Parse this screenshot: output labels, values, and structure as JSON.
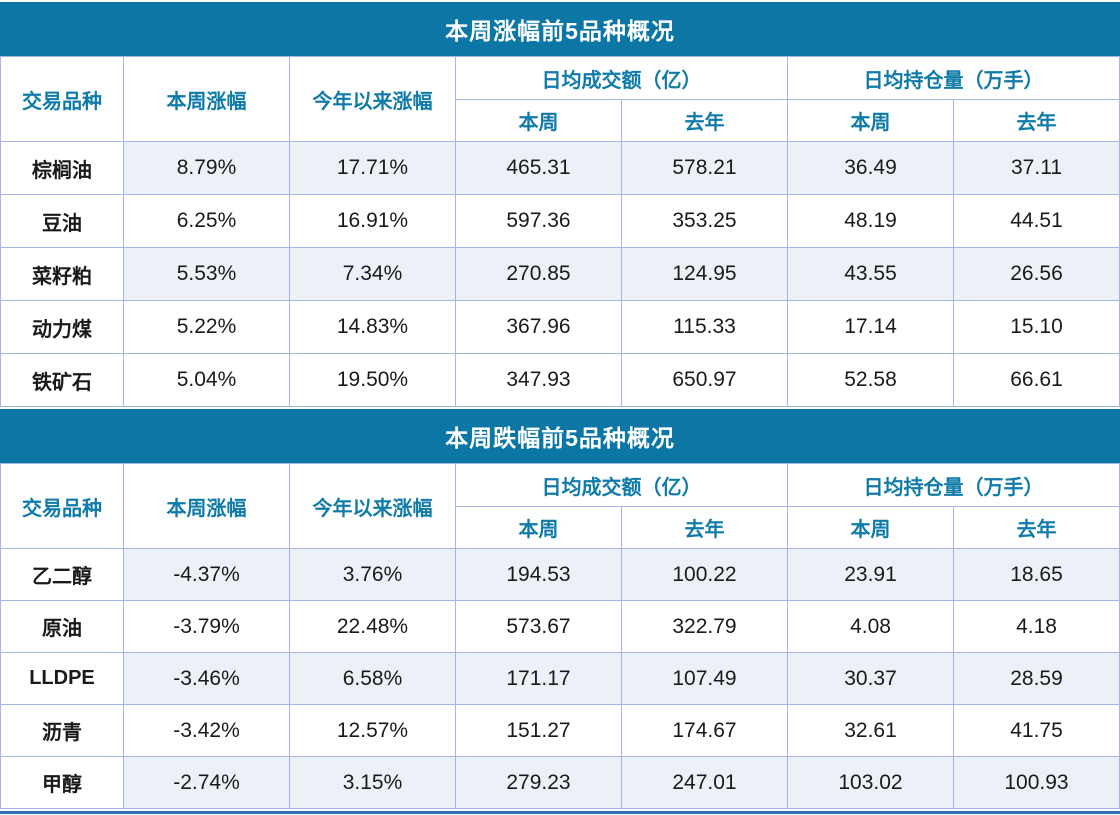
{
  "colors": {
    "title_bg": "#0c77a4",
    "title_text": "#ffffff",
    "header_text": "#0f7ba8",
    "grid_border": "#a5b7e1",
    "row_tint": "#ecf1f8",
    "body_text": "#1a1a1a",
    "bottom_rule": "#2e74b5"
  },
  "tables": [
    {
      "title": "本周涨幅前5品种概况",
      "headers": {
        "col_variety": "交易品种",
        "col_week_change": "本周涨幅",
        "col_ytd_change": "今年以来涨幅",
        "group_turnover": "日均成交额（亿）",
        "group_open_interest": "日均持仓量（万手）",
        "sub_this_week_turnover": "本周",
        "sub_last_year_turnover": "去年",
        "sub_this_week_oi": "本周",
        "sub_last_year_oi": "去年"
      },
      "rows": [
        {
          "variety": "棕榈油",
          "week_change": "8.79%",
          "ytd_change": "17.71%",
          "turnover_week": "465.31",
          "turnover_last_year": "578.21",
          "oi_week": "36.49",
          "oi_last_year": "37.11",
          "shaded": true
        },
        {
          "variety": "豆油",
          "week_change": "6.25%",
          "ytd_change": "16.91%",
          "turnover_week": "597.36",
          "turnover_last_year": "353.25",
          "oi_week": "48.19",
          "oi_last_year": "44.51",
          "shaded": false
        },
        {
          "variety": "菜籽粕",
          "week_change": "5.53%",
          "ytd_change": "7.34%",
          "turnover_week": "270.85",
          "turnover_last_year": "124.95",
          "oi_week": "43.55",
          "oi_last_year": "26.56",
          "shaded": true
        },
        {
          "variety": "动力煤",
          "week_change": "5.22%",
          "ytd_change": "14.83%",
          "turnover_week": "367.96",
          "turnover_last_year": "115.33",
          "oi_week": "17.14",
          "oi_last_year": "15.10",
          "shaded": false
        },
        {
          "variety": "铁矿石",
          "week_change": "5.04%",
          "ytd_change": "19.50%",
          "turnover_week": "347.93",
          "turnover_last_year": "650.97",
          "oi_week": "52.58",
          "oi_last_year": "66.61",
          "shaded": false
        }
      ]
    },
    {
      "title": "本周跌幅前5品种概况",
      "headers": {
        "col_variety": "交易品种",
        "col_week_change": "本周涨幅",
        "col_ytd_change": "今年以来涨幅",
        "group_turnover": "日均成交额（亿）",
        "group_open_interest": "日均持仓量（万手）",
        "sub_this_week_turnover": "本周",
        "sub_last_year_turnover": "去年",
        "sub_this_week_oi": "本周",
        "sub_last_year_oi": "去年"
      },
      "rows": [
        {
          "variety": "乙二醇",
          "week_change": "-4.37%",
          "ytd_change": "3.76%",
          "turnover_week": "194.53",
          "turnover_last_year": "100.22",
          "oi_week": "23.91",
          "oi_last_year": "18.65",
          "shaded": true
        },
        {
          "variety": "原油",
          "week_change": "-3.79%",
          "ytd_change": "22.48%",
          "turnover_week": "573.67",
          "turnover_last_year": "322.79",
          "oi_week": "4.08",
          "oi_last_year": "4.18",
          "shaded": false
        },
        {
          "variety": "LLDPE",
          "week_change": "-3.46%",
          "ytd_change": "6.58%",
          "turnover_week": "171.17",
          "turnover_last_year": "107.49",
          "oi_week": "30.37",
          "oi_last_year": "28.59",
          "shaded": true
        },
        {
          "variety": "沥青",
          "week_change": "-3.42%",
          "ytd_change": "12.57%",
          "turnover_week": "151.27",
          "turnover_last_year": "174.67",
          "oi_week": "32.61",
          "oi_last_year": "41.75",
          "shaded": false
        },
        {
          "variety": "甲醇",
          "week_change": "-2.74%",
          "ytd_change": "3.15%",
          "turnover_week": "279.23",
          "turnover_last_year": "247.01",
          "oi_week": "103.02",
          "oi_last_year": "100.93",
          "shaded": true
        }
      ]
    }
  ]
}
